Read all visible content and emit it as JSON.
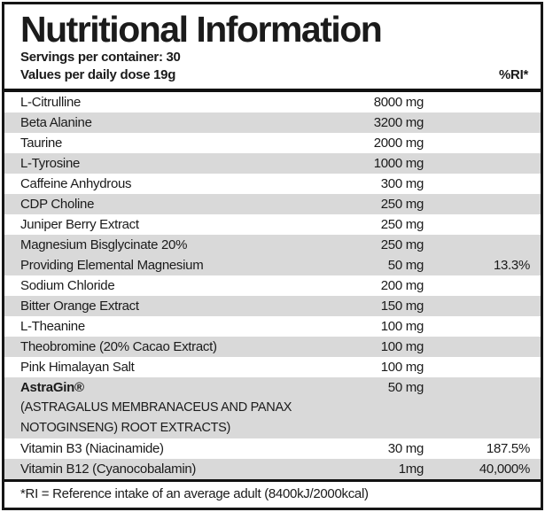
{
  "header": {
    "title": "Nutritional Information",
    "servings_line": "Servings per container: 30",
    "values_line": "Values per daily dose 19g",
    "ri_column_label": "%RI*"
  },
  "table": {
    "rows": [
      {
        "name": "L-Citrulline",
        "amount": "8000 mg",
        "ri": "",
        "shade": "white",
        "bold": false,
        "sublines": []
      },
      {
        "name": "Beta Alanine",
        "amount": "3200 mg",
        "ri": "",
        "shade": "gray",
        "bold": false,
        "sublines": []
      },
      {
        "name": "Taurine",
        "amount": "2000 mg",
        "ri": "",
        "shade": "white",
        "bold": false,
        "sublines": []
      },
      {
        "name": "L-Tyrosine",
        "amount": "1000 mg",
        "ri": "",
        "shade": "gray",
        "bold": false,
        "sublines": []
      },
      {
        "name": "Caffeine Anhydrous",
        "amount": "300 mg",
        "ri": "",
        "shade": "white",
        "bold": false,
        "sublines": []
      },
      {
        "name": "CDP Choline",
        "amount": "250 mg",
        "ri": "",
        "shade": "gray",
        "bold": false,
        "sublines": []
      },
      {
        "name": "Juniper Berry Extract",
        "amount": "250 mg",
        "ri": "",
        "shade": "white",
        "bold": false,
        "sublines": []
      },
      {
        "name": "Magnesium Bisglycinate 20%",
        "amount": "250 mg",
        "ri": "",
        "shade": "gray",
        "bold": false,
        "sublines": []
      },
      {
        "name": "Providing Elemental Magnesium",
        "amount": "50 mg",
        "ri": "13.3%",
        "shade": "gray",
        "bold": false,
        "sublines": []
      },
      {
        "name": "Sodium Chloride",
        "amount": "200 mg",
        "ri": "",
        "shade": "white",
        "bold": false,
        "sublines": []
      },
      {
        "name": "Bitter Orange Extract",
        "amount": "150 mg",
        "ri": "",
        "shade": "gray",
        "bold": false,
        "sublines": []
      },
      {
        "name": "L-Theanine",
        "amount": "100 mg",
        "ri": "",
        "shade": "white",
        "bold": false,
        "sublines": []
      },
      {
        "name": "Theobromine (20% Cacao Extract)",
        "amount": "100 mg",
        "ri": "",
        "shade": "gray",
        "bold": false,
        "sublines": []
      },
      {
        "name": "Pink Himalayan Salt",
        "amount": "100 mg",
        "ri": "",
        "shade": "white",
        "bold": false,
        "sublines": []
      },
      {
        "name": "AstraGin®",
        "amount": "50 mg",
        "ri": "",
        "shade": "gray",
        "bold": true,
        "sublines": [
          "(ASTRAGALUS MEMBRANACEUS AND PANAX",
          "NOTOGINSENG) ROOT EXTRACTS)"
        ]
      },
      {
        "name": "Vitamin B3 (Niacinamide)",
        "amount": "30 mg",
        "ri": "187.5%",
        "shade": "white",
        "bold": false,
        "sublines": []
      },
      {
        "name": "Vitamin B12 (Cyanocobalamin)",
        "amount": "1mg",
        "ri": "40,000%",
        "shade": "gray",
        "bold": false,
        "sublines": []
      }
    ]
  },
  "footer": {
    "note": "*RI = Reference intake of an average adult (8400kJ/2000kcal)"
  },
  "colors": {
    "row_shade": "#d9d9d9",
    "text": "#1b1b1b",
    "border": "#161616"
  }
}
